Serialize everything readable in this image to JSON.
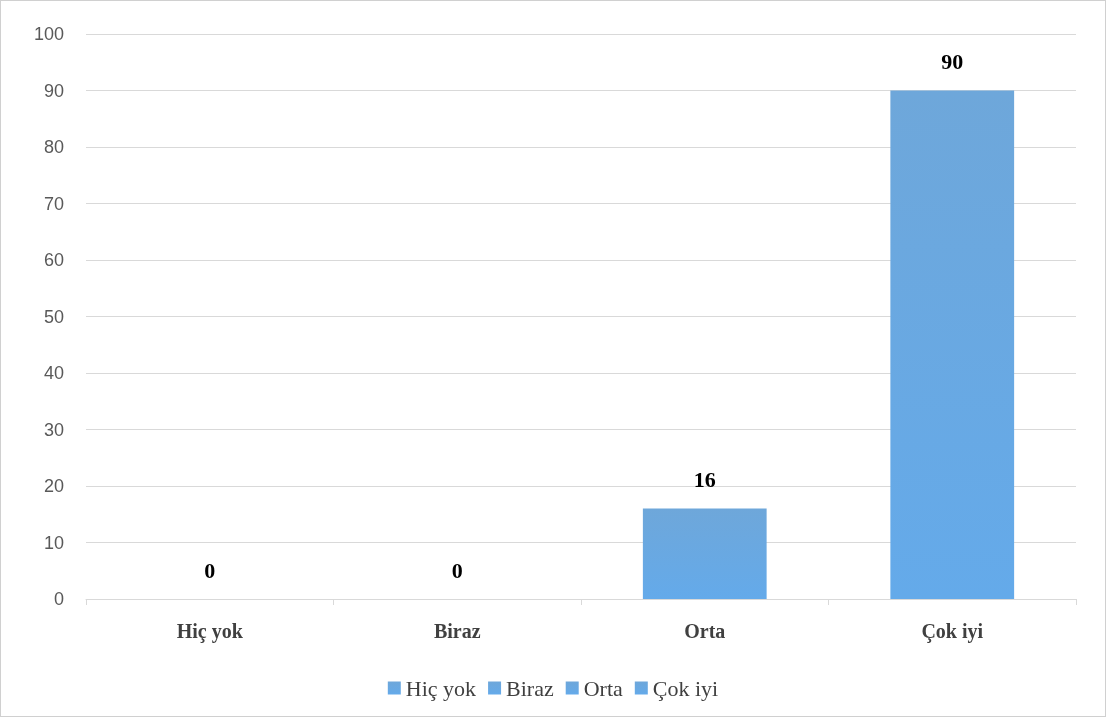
{
  "chart_data": {
    "type": "bar",
    "categories": [
      "Hiç yok",
      "Biraz",
      "Orta",
      "Çok iyi"
    ],
    "series": [
      {
        "name": "Hiç yok",
        "color": "#5b9bd5",
        "values": [
          0,
          null,
          null,
          null
        ]
      },
      {
        "name": "Biraz",
        "color": "#5b9bd5",
        "values": [
          null,
          0,
          null,
          null
        ]
      },
      {
        "name": "Orta",
        "color": "#5b9bd5",
        "values": [
          null,
          null,
          16,
          null
        ]
      },
      {
        "name": "Çok iyi",
        "color": "#5b9bd5",
        "values": [
          null,
          null,
          null,
          90
        ]
      }
    ],
    "stacked": true,
    "ylim": [
      0,
      100
    ],
    "yticks": [
      0,
      10,
      20,
      30,
      40,
      50,
      60,
      70,
      80,
      90,
      100
    ],
    "grid": "y",
    "legend": "bottom",
    "data_labels": true
  }
}
